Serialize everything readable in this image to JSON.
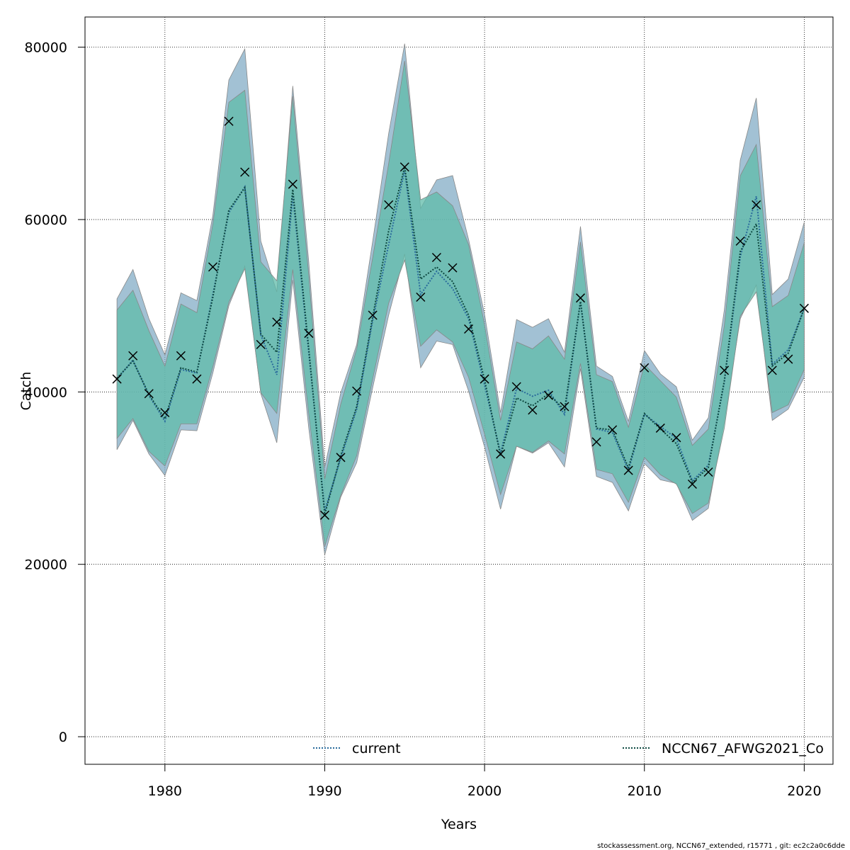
{
  "chart_data": {
    "type": "line",
    "title": "",
    "xlabel": "Years",
    "ylabel": "Catch",
    "xlim": [
      1975,
      2021.8
    ],
    "ylim": [
      -3200,
      83500
    ],
    "x_ticks": [
      1980,
      1990,
      2000,
      2010,
      2020
    ],
    "y_ticks": [
      0,
      20000,
      40000,
      60000,
      80000
    ],
    "grid": true,
    "legend_position": "bottom",
    "x": [
      1977,
      1978,
      1979,
      1980,
      1981,
      1982,
      1983,
      1984,
      1985,
      1986,
      1987,
      1988,
      1989,
      1990,
      1991,
      1992,
      1993,
      1994,
      1995,
      1996,
      1997,
      1998,
      1999,
      2000,
      2001,
      2002,
      2003,
      2004,
      2005,
      2006,
      2007,
      2008,
      2009,
      2010,
      2011,
      2012,
      2013,
      2014,
      2015,
      2016,
      2017,
      2018,
      2019,
      2020
    ],
    "observed": {
      "marker": "x",
      "values": [
        41500,
        44200,
        39800,
        37600,
        44200,
        41500,
        54500,
        71400,
        65500,
        45500,
        48100,
        64100,
        46800,
        25700,
        32400,
        40100,
        48900,
        61700,
        66100,
        51000,
        55600,
        54400,
        47300,
        41500,
        32800,
        40600,
        37900,
        39600,
        38300,
        50900,
        34200,
        35600,
        30900,
        42800,
        35800,
        34700,
        29300,
        30700,
        42500,
        57500,
        61700,
        42500,
        43800,
        49700
      ]
    },
    "series": [
      {
        "name": "current",
        "color": "#2a6b9c",
        "band_color": "#7ba7c2",
        "line_style": "dotted",
        "values": [
          41500,
          43700,
          39600,
          36600,
          42600,
          42200,
          51300,
          60800,
          63800,
          46600,
          42000,
          62800,
          44600,
          26200,
          32300,
          38000,
          48300,
          57100,
          65700,
          51300,
          54000,
          52000,
          48500,
          40800,
          32900,
          40400,
          39500,
          40200,
          37400,
          50500,
          35700,
          35300,
          30900,
          37400,
          36000,
          34600,
          29700,
          31500,
          41100,
          55700,
          62700,
          43200,
          44900,
          49700
        ],
        "upper": [
          50800,
          54200,
          48500,
          44300,
          51500,
          50600,
          60500,
          76200,
          79800,
          57500,
          51600,
          75500,
          55100,
          31300,
          39900,
          45500,
          57500,
          70000,
          80400,
          61300,
          64600,
          65100,
          57700,
          49000,
          37600,
          48400,
          47500,
          48500,
          44600,
          59200,
          43000,
          41800,
          36600,
          44800,
          42100,
          40600,
          34400,
          37000,
          49500,
          66900,
          74100,
          51300,
          53100,
          59700
        ],
        "lower": [
          33300,
          36700,
          32800,
          30300,
          35600,
          35500,
          42200,
          50000,
          54600,
          39800,
          34100,
          53000,
          35800,
          21100,
          27800,
          31800,
          40500,
          48900,
          56000,
          42800,
          45900,
          45500,
          40100,
          33600,
          26400,
          33700,
          32900,
          34100,
          31300,
          42700,
          30200,
          29500,
          26200,
          31700,
          29800,
          29400,
          25100,
          26500,
          36600,
          48500,
          52400,
          36700,
          38000,
          41700
        ]
      },
      {
        "name": "NCCN67_AFWG2021_Co",
        "color": "#0f4a42",
        "band_color": "#5fbba9",
        "line_style": "dotted",
        "values": [
          41600,
          43600,
          39700,
          36900,
          42800,
          42300,
          51000,
          61100,
          63700,
          46700,
          44600,
          63500,
          45000,
          25800,
          32600,
          38300,
          48700,
          58700,
          66100,
          53100,
          54500,
          52800,
          48900,
          41400,
          32600,
          39300,
          38400,
          39800,
          37900,
          50500,
          35800,
          35600,
          31200,
          37500,
          35700,
          34000,
          29500,
          31200,
          41300,
          56300,
          59500,
          43000,
          44500,
          49700
        ],
        "upper": [
          49500,
          51800,
          47100,
          43000,
          50200,
          49200,
          59500,
          73600,
          75000,
          55100,
          52900,
          74300,
          53500,
          29900,
          38600,
          45000,
          55600,
          66500,
          78400,
          62300,
          63200,
          61600,
          57100,
          47800,
          36700,
          45800,
          45000,
          46500,
          43800,
          57400,
          42000,
          41200,
          35900,
          43200,
          41300,
          39400,
          33800,
          35700,
          47700,
          65100,
          68700,
          49900,
          51200,
          57300
        ],
        "lower": [
          34600,
          36900,
          33100,
          31400,
          36300,
          36300,
          42900,
          50400,
          54300,
          39900,
          37500,
          54200,
          37400,
          22100,
          28000,
          32600,
          41500,
          50300,
          55300,
          45300,
          47200,
          45800,
          41700,
          35100,
          28100,
          33700,
          33000,
          34300,
          32800,
          43300,
          31000,
          30500,
          27200,
          32400,
          30400,
          29300,
          25900,
          27100,
          35800,
          48800,
          51600,
          37600,
          38500,
          42600
        ]
      }
    ]
  },
  "footnote": "stockassessment.org, NCCN67_extended, r15771 , git: ec2c2a0c6dde"
}
